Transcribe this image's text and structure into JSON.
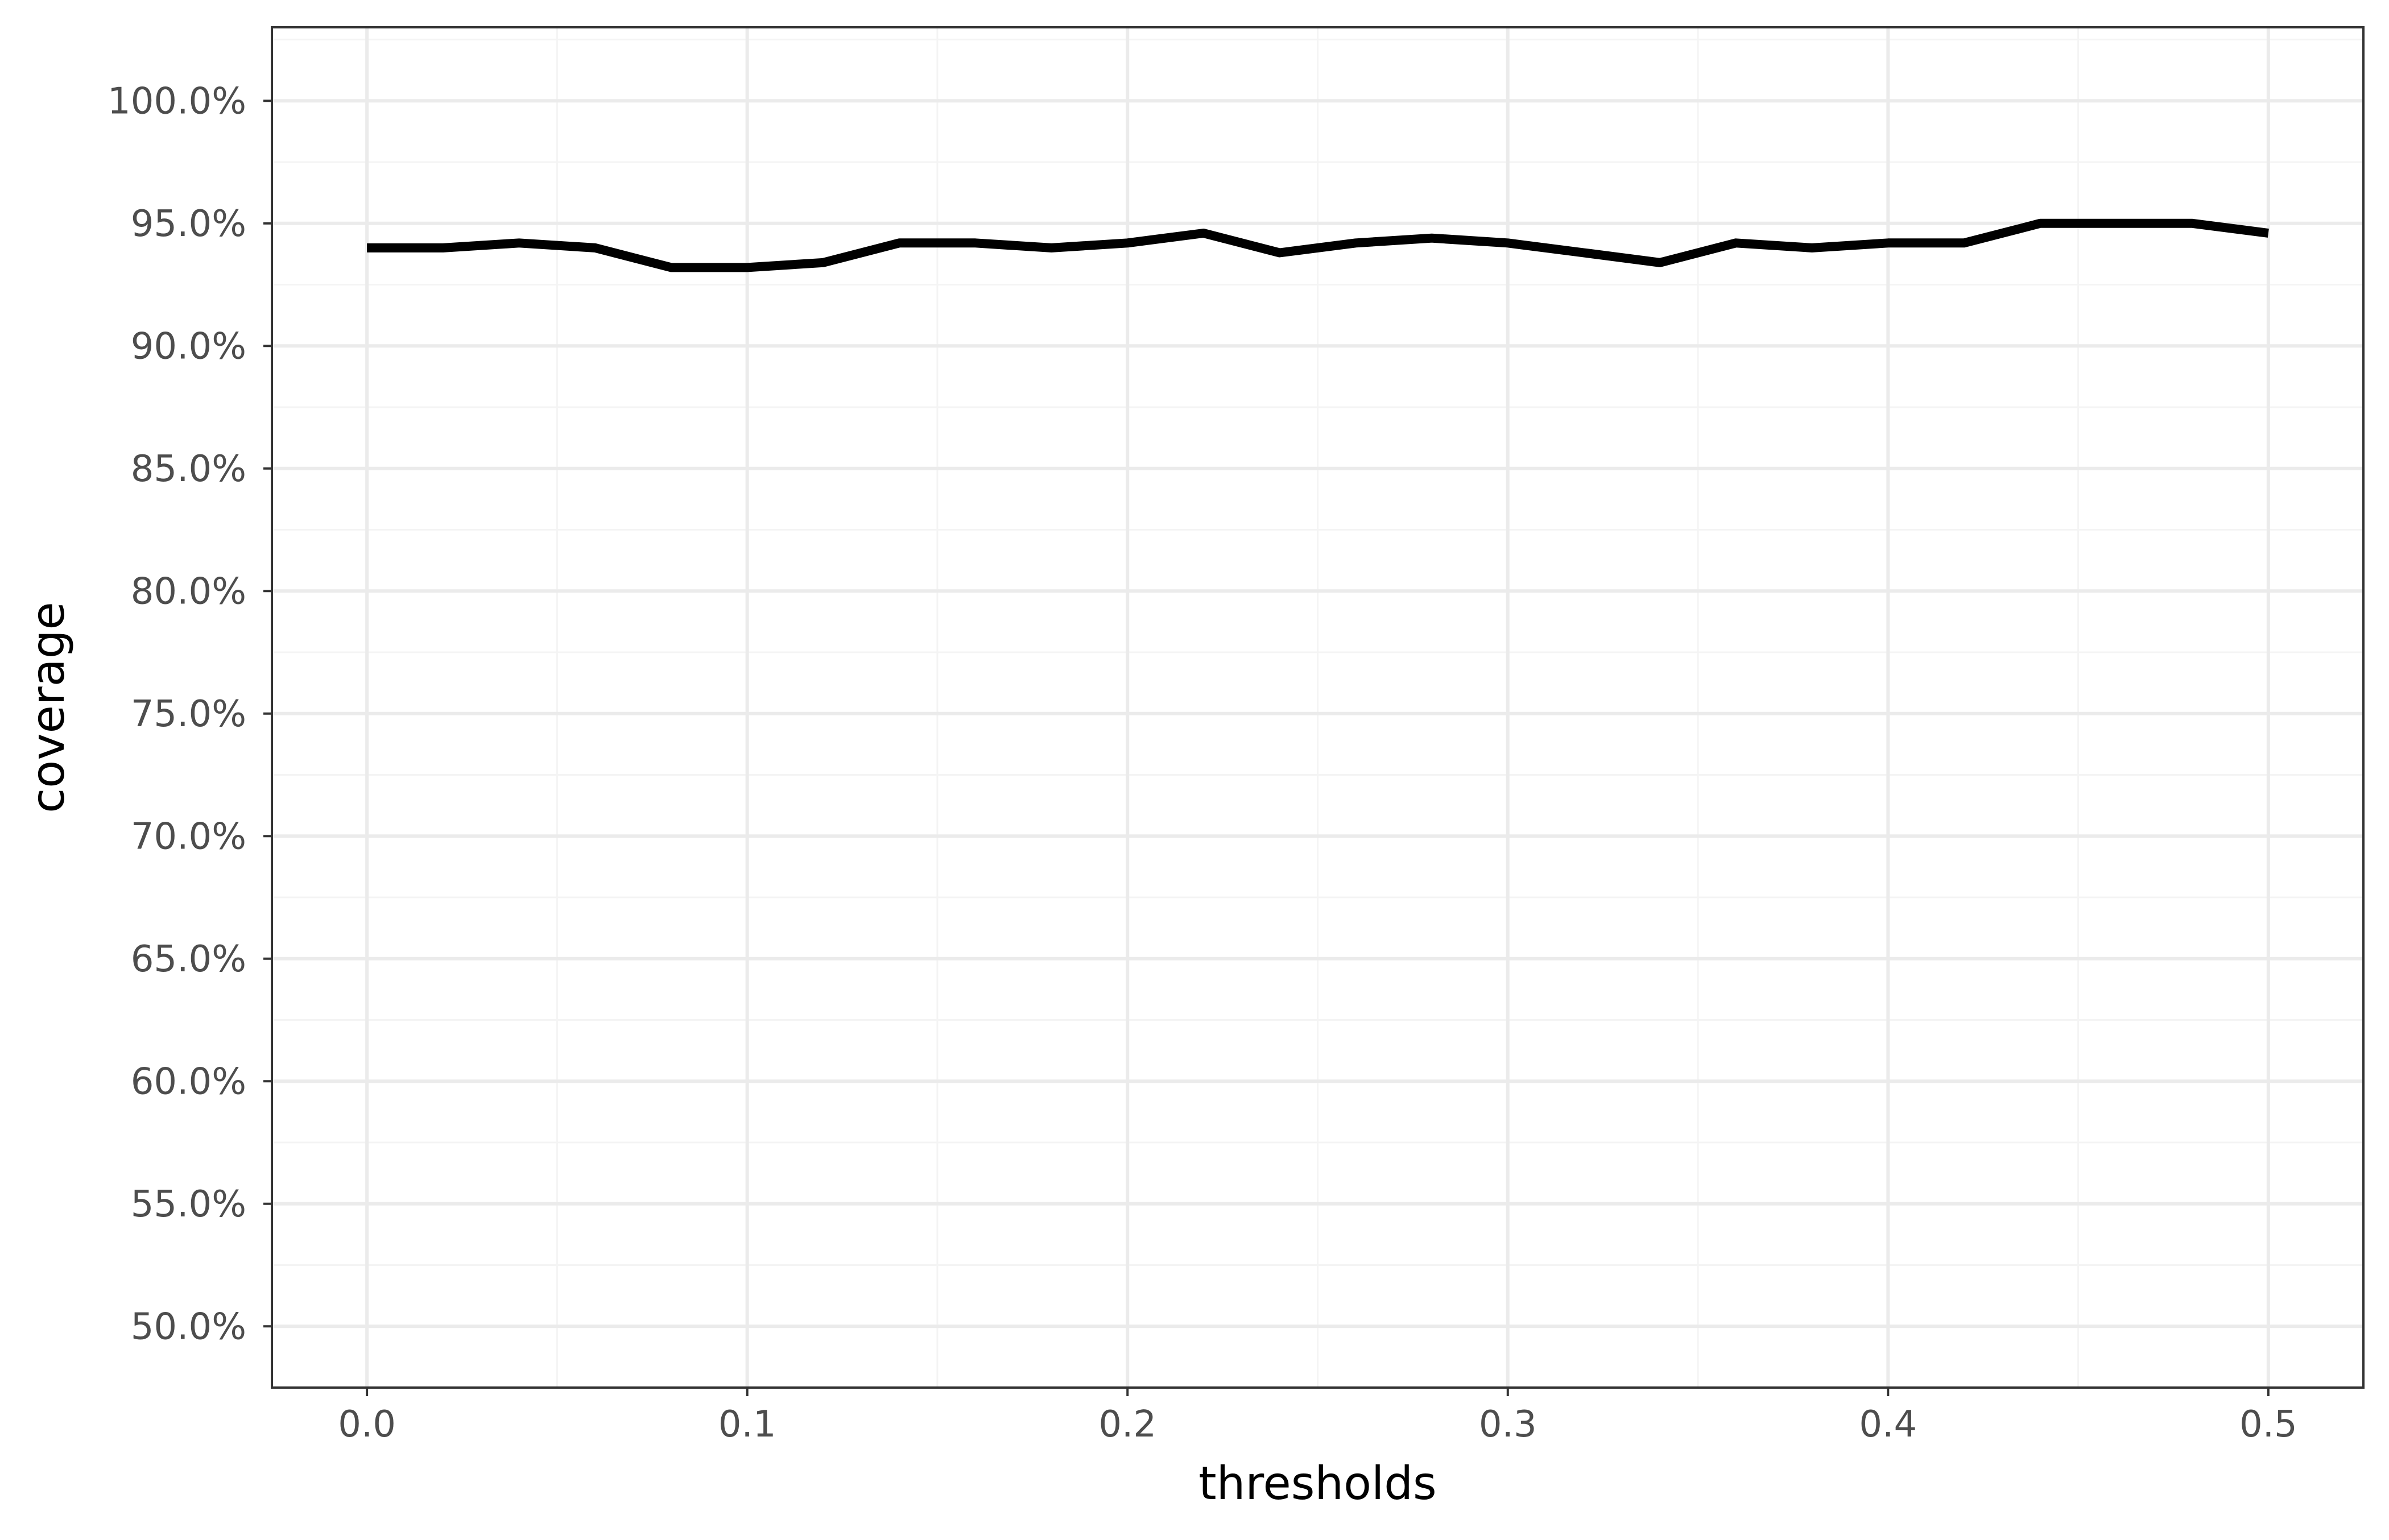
{
  "chart_data": {
    "type": "line",
    "title": "",
    "xlabel": "thresholds",
    "ylabel": "coverage",
    "xlim": [
      -0.025,
      0.525
    ],
    "ylim": [
      0.475,
      1.03
    ],
    "x_ticks": [
      0.0,
      0.1,
      0.2,
      0.3,
      0.4,
      0.5
    ],
    "x_tick_labels": [
      "0.0",
      "0.1",
      "0.2",
      "0.3",
      "0.4",
      "0.5"
    ],
    "x_minor_ticks": [
      0.05,
      0.15,
      0.25,
      0.35,
      0.45
    ],
    "y_ticks": [
      0.5,
      0.55,
      0.6,
      0.65,
      0.7,
      0.75,
      0.8,
      0.85,
      0.9,
      0.95,
      1.0
    ],
    "y_tick_labels": [
      "50.0%",
      "55.0%",
      "60.0%",
      "65.0%",
      "70.0%",
      "75.0%",
      "80.0%",
      "85.0%",
      "90.0%",
      "95.0%",
      "100.0%"
    ],
    "y_minor_ticks": [
      0.525,
      0.575,
      0.625,
      0.675,
      0.725,
      0.775,
      0.825,
      0.875,
      0.925,
      0.975,
      1.025
    ],
    "grid": true,
    "legend": "none",
    "series": [
      {
        "color": "#000000",
        "x": [
          0.0,
          0.02,
          0.04,
          0.06,
          0.08,
          0.1,
          0.12,
          0.14,
          0.16,
          0.18,
          0.2,
          0.22,
          0.24,
          0.26,
          0.28,
          0.3,
          0.32,
          0.34,
          0.36,
          0.38,
          0.4,
          0.42,
          0.44,
          0.46,
          0.48,
          0.5
        ],
        "values": [
          0.94,
          0.94,
          0.942,
          0.94,
          0.932,
          0.932,
          0.934,
          0.942,
          0.942,
          0.94,
          0.942,
          0.946,
          0.938,
          0.942,
          0.944,
          0.942,
          0.938,
          0.934,
          0.942,
          0.94,
          0.942,
          0.942,
          0.95,
          0.95,
          0.95,
          0.946
        ]
      }
    ]
  },
  "colors": {
    "background": "#ffffff",
    "panel_border": "#333333",
    "grid_major": "#ebebeb",
    "grid_minor": "#f4f4f4",
    "tick_label": "#4d4d4d",
    "line": "#000000"
  }
}
